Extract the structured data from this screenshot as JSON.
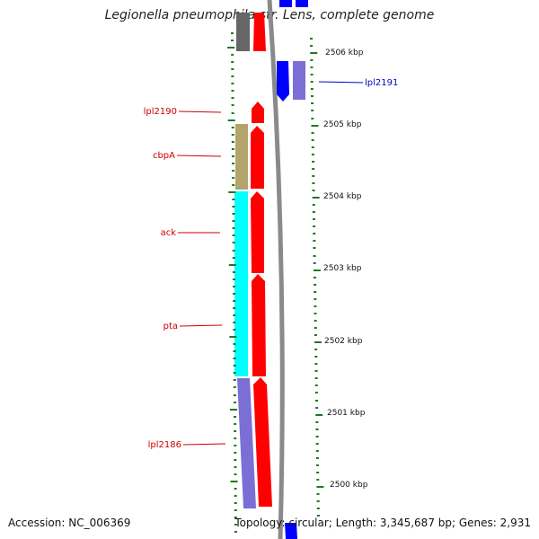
{
  "title": "Legionella pneumophila str. Lens, complete genome",
  "footer": {
    "accession": "Accession: NC_006369",
    "summary": "Topology: circular; Length: 3,345,687 bp; Genes: 2,931"
  },
  "colors": {
    "red": "#ff0000",
    "blue": "#0000ff",
    "cyan": "#00ffff",
    "olive": "#b3a46b",
    "purple": "#7b6fd6",
    "gray": "#666666",
    "tick_green": "#1e7a1e",
    "label_red": "#cc0000",
    "label_blue": "#0000cc"
  },
  "scale_labels": [
    "2506 kbp",
    "2505 kbp",
    "2504 kbp",
    "2503 kbp",
    "2502 kbp",
    "2501 kbp",
    "2500 kbp"
  ],
  "gene_labels": [
    {
      "name": "lpl2191",
      "color": "blue"
    },
    {
      "name": "lpl2190",
      "color": "red"
    },
    {
      "name": "cbpA",
      "color": "red"
    },
    {
      "name": "ack",
      "color": "red"
    },
    {
      "name": "pta",
      "color": "red"
    },
    {
      "name": "lpl2186",
      "color": "red"
    }
  ]
}
